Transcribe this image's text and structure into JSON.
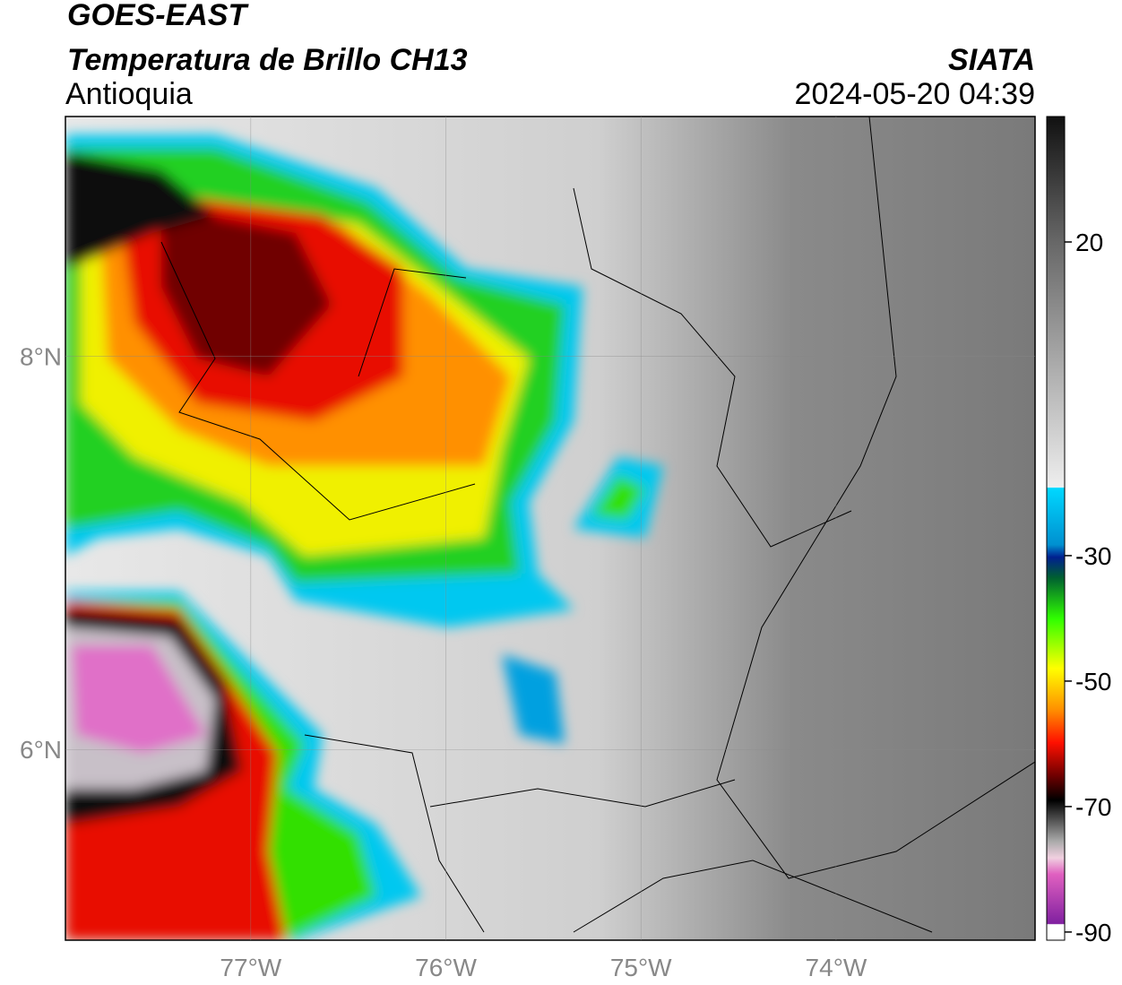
{
  "header": {
    "title": "GOES-EAST",
    "subtitle": "Temperatura de Brillo CH13",
    "region": "Antioquia",
    "source": "SIATA",
    "datetime": "2024-05-20 04:39"
  },
  "map": {
    "lonlim": [
      -77.95,
      -72.98
    ],
    "latlim": [
      5.03,
      9.22
    ],
    "lon_ticks": [
      {
        "value": -77,
        "label": "77°W"
      },
      {
        "value": -76,
        "label": "76°W"
      },
      {
        "value": -75,
        "label": "75°W"
      },
      {
        "value": -74,
        "label": "74°W"
      }
    ],
    "lat_ticks": [
      {
        "value": 8,
        "label": "8°N"
      },
      {
        "value": 6,
        "label": "6°N"
      }
    ]
  },
  "colorbar": {
    "lim": [
      -91.3,
      40
    ],
    "ticks": [
      20,
      -30,
      -50,
      -70,
      -90
    ]
  }
}
